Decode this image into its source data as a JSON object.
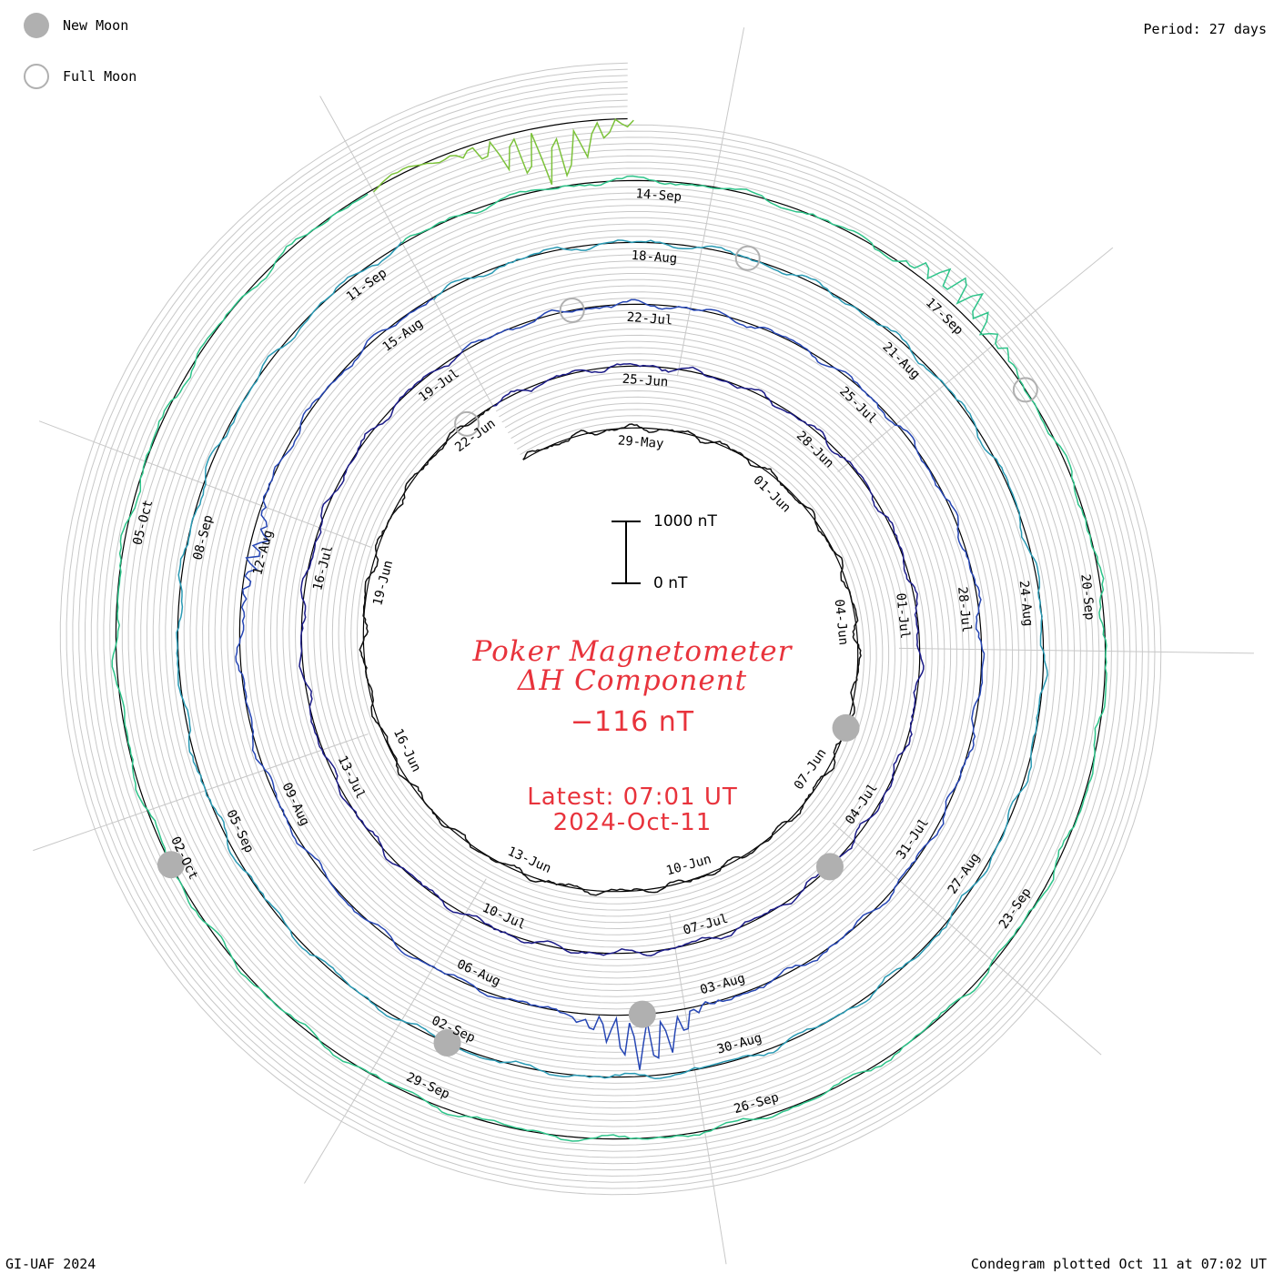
{
  "legend": {
    "new_moon_label": "New Moon",
    "full_moon_label": "Full Moon"
  },
  "period_label": "Period: 27 days",
  "footer_left": "GI-UAF 2024",
  "footer_right": "Condegram plotted Oct 11 at 07:02 UT",
  "title": {
    "line1": "Poker Magnetometer",
    "line2": "ΔH Component",
    "current_value": "−116 nT",
    "latest_label": "Latest: 07:01 UT",
    "latest_date": "2024-Oct-11"
  },
  "scale_bar": {
    "top_label": "1000 nT",
    "bottom_label": "0 nT",
    "value": 1000
  },
  "colors": {
    "moon": "#b0b0b0",
    "title": "#e8333c",
    "grid": "#c8c8c8",
    "baseline": "#000000",
    "ring_colors": [
      "#101010",
      "#1c1c88",
      "#2646b4",
      "#2a9ab4",
      "#2ec48a",
      "#7cc23a",
      "#b8b020",
      "#c0761c",
      "#c04a12",
      "#c01818"
    ]
  },
  "chart_data": {
    "type": "condegram (spiral time series)",
    "parameter": "ΔH",
    "units": "nT",
    "period_days": 27,
    "start_date": "2024-05-27",
    "end_date": "2024-10-11",
    "date_labels": [
      "29-May",
      "01-Jun",
      "04-Jun",
      "07-Jun",
      "10-Jun",
      "13-Jun",
      "16-Jun",
      "19-Jun",
      "22-Jun",
      "25-Jun",
      "28-Jun",
      "01-Jul",
      "04-Jul",
      "07-Jul",
      "10-Jul",
      "13-Jul",
      "16-Jul",
      "19-Jul",
      "22-Jul",
      "25-Jul",
      "28-Jul",
      "31-Jul",
      "03-Aug",
      "06-Aug",
      "09-Aug",
      "12-Aug",
      "15-Aug",
      "18-Aug",
      "21-Aug",
      "24-Aug",
      "27-Aug",
      "30-Aug",
      "02-Sep",
      "05-Sep",
      "08-Sep",
      "11-Sep",
      "14-Sep",
      "17-Sep",
      "20-Sep",
      "23-Sep",
      "26-Sep",
      "29-Sep",
      "02-Oct",
      "05-Oct"
    ],
    "new_moons": [
      "2024-06-06",
      "2024-07-05",
      "2024-08-04",
      "2024-09-02",
      "2024-10-02"
    ],
    "full_moons": [
      "2024-06-22",
      "2024-07-21",
      "2024-08-19",
      "2024-09-18"
    ],
    "notable_disturbances": [
      {
        "date": "2024-08-04",
        "approx_peak_nT": 900
      },
      {
        "date": "2024-08-12",
        "approx_peak_nT": -250
      },
      {
        "date": "2024-09-17",
        "approx_peak_nT": 500
      },
      {
        "date": "2024-10-10",
        "approx_peak_nT": -950
      }
    ]
  }
}
